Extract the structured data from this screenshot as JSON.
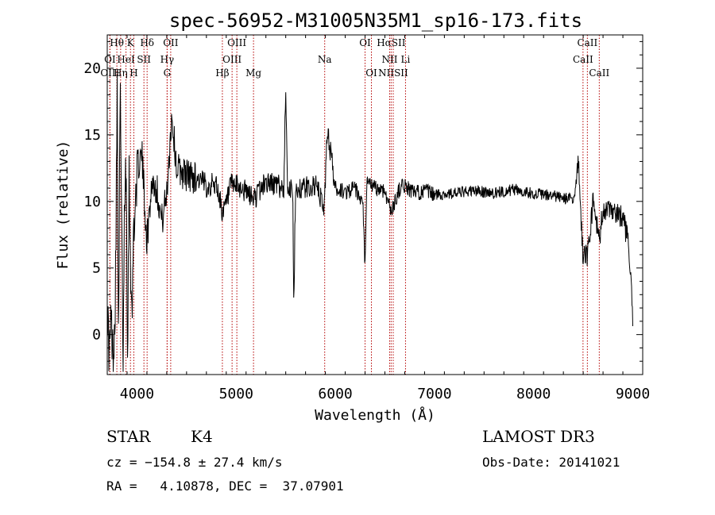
{
  "colors": {
    "spectrum": "#000000",
    "line_markers": "#b40000",
    "axes": "#000000"
  },
  "chart_data": {
    "type": "line",
    "title": "spec-56952-M31005N35M1_sp16-173.fits",
    "xlabel": "Wavelength (Å)",
    "ylabel": "Flux (relative)",
    "xlim": [
      3700,
      9100
    ],
    "ylim": [
      -3,
      22.5
    ],
    "x_ticks": [
      4000,
      5000,
      6000,
      7000,
      8000,
      9000
    ],
    "y_ticks": [
      0,
      5,
      10,
      15,
      20
    ],
    "grid": false,
    "legend": "none",
    "series_anchor_points": [
      [
        3700,
        2.0
      ],
      [
        3720,
        -1.5
      ],
      [
        3740,
        1.0
      ],
      [
        3760,
        -2.0
      ],
      [
        3780,
        2.5
      ],
      [
        3800,
        17.5
      ],
      [
        3815,
        -1.0
      ],
      [
        3830,
        19.0
      ],
      [
        3845,
        8.0
      ],
      [
        3860,
        -2.0
      ],
      [
        3875,
        11.0
      ],
      [
        3890,
        13.0
      ],
      [
        3905,
        -1.0
      ],
      [
        3920,
        12.0
      ],
      [
        3935,
        5.5
      ],
      [
        3950,
        0.5
      ],
      [
        3965,
        8.5
      ],
      [
        3980,
        9.0
      ],
      [
        4000,
        12.5
      ],
      [
        4050,
        13.5
      ],
      [
        4100,
        7.0
      ],
      [
        4150,
        11.5
      ],
      [
        4200,
        11.0
      ],
      [
        4250,
        8.5
      ],
      [
        4300,
        10.5
      ],
      [
        4350,
        16.5
      ],
      [
        4400,
        12.5
      ],
      [
        4500,
        12.0
      ],
      [
        4600,
        11.8
      ],
      [
        4700,
        11.2
      ],
      [
        4800,
        11.3
      ],
      [
        4870,
        9.0
      ],
      [
        4950,
        11.2
      ],
      [
        5050,
        11.0
      ],
      [
        5180,
        10.2
      ],
      [
        5300,
        11.5
      ],
      [
        5480,
        11.0
      ],
      [
        5500,
        18.5
      ],
      [
        5520,
        11.0
      ],
      [
        5570,
        10.8
      ],
      [
        5580,
        2.0
      ],
      [
        5600,
        11.0
      ],
      [
        5700,
        11.0
      ],
      [
        5800,
        11.2
      ],
      [
        5890,
        9.5
      ],
      [
        5920,
        15.5
      ],
      [
        6000,
        11.0
      ],
      [
        6100,
        10.7
      ],
      [
        6200,
        11.0
      ],
      [
        6280,
        9.5
      ],
      [
        6300,
        5.0
      ],
      [
        6320,
        11.5
      ],
      [
        6400,
        11.0
      ],
      [
        6500,
        10.8
      ],
      [
        6563,
        9.2
      ],
      [
        6650,
        11.0
      ],
      [
        6700,
        11.2
      ],
      [
        6800,
        10.6
      ],
      [
        6900,
        10.8
      ],
      [
        7000,
        10.5
      ],
      [
        7200,
        10.6
      ],
      [
        7400,
        10.8
      ],
      [
        7600,
        10.6
      ],
      [
        7800,
        10.9
      ],
      [
        8000,
        10.6
      ],
      [
        8200,
        10.4
      ],
      [
        8400,
        10.1
      ],
      [
        8450,
        13.0
      ],
      [
        8498,
        6.0
      ],
      [
        8542,
        6.0
      ],
      [
        8600,
        10.0
      ],
      [
        8662,
        7.0
      ],
      [
        8700,
        9.5
      ],
      [
        8800,
        9.0
      ],
      [
        8900,
        9.0
      ],
      [
        8960,
        6.5
      ],
      [
        8990,
        3.0
      ],
      [
        9000,
        0.5
      ]
    ],
    "line_markers": [
      {
        "label": "Hθ",
        "wavelength": 3797,
        "row": 0
      },
      {
        "label": "K",
        "wavelength": 3934,
        "row": 0
      },
      {
        "label": "Hδ",
        "wavelength": 4102,
        "row": 0
      },
      {
        "label": "OII",
        "wavelength": 4340,
        "row": 0
      },
      {
        "label": "OIII",
        "wavelength": 5007,
        "row": 0
      },
      {
        "label": "OI",
        "wavelength": 6300,
        "row": 0
      },
      {
        "label": "HαSII",
        "wavelength": 6563,
        "row": 0
      },
      {
        "label": "CaII",
        "wavelength": 8542,
        "row": 0
      },
      {
        "label": "OI",
        "wavelength": 3727,
        "row": 1
      },
      {
        "label": "HeI",
        "wavelength": 3889,
        "row": 1
      },
      {
        "label": "SII",
        "wavelength": 4070,
        "row": 1
      },
      {
        "label": "Hγ",
        "wavelength": 4304,
        "row": 1
      },
      {
        "label": "OIII",
        "wavelength": 4959,
        "row": 1
      },
      {
        "label": "Na",
        "wavelength": 5893,
        "row": 1
      },
      {
        "label": "NII",
        "wavelength": 6548,
        "row": 1
      },
      {
        "label": "Li",
        "wavelength": 6708,
        "row": 1
      },
      {
        "label": "CaII",
        "wavelength": 8498,
        "row": 1
      },
      {
        "label": "OIII",
        "wavelength": 3727,
        "row": 2
      },
      {
        "label": "Hη",
        "wavelength": 3835,
        "row": 2
      },
      {
        "label": "H",
        "wavelength": 3968,
        "row": 2
      },
      {
        "label": "G",
        "wavelength": 4304,
        "row": 2
      },
      {
        "label": "Hβ",
        "wavelength": 4861,
        "row": 2
      },
      {
        "label": "Mg",
        "wavelength": 5175,
        "row": 2
      },
      {
        "label": "OI",
        "wavelength": 6364,
        "row": 2
      },
      {
        "label": "NIISII",
        "wavelength": 6584,
        "row": 2
      },
      {
        "label": "CaII",
        "wavelength": 8662,
        "row": 2
      }
    ]
  },
  "info": {
    "object_class": "STAR",
    "subclass": "K4",
    "redshift_line": "cz = −154.8 ± 27.4 km/s",
    "coords_line": "RA =   4.10878, DEC =  37.07901",
    "survey": "LAMOST DR3",
    "obs_date": "Obs-Date: 20141021"
  }
}
